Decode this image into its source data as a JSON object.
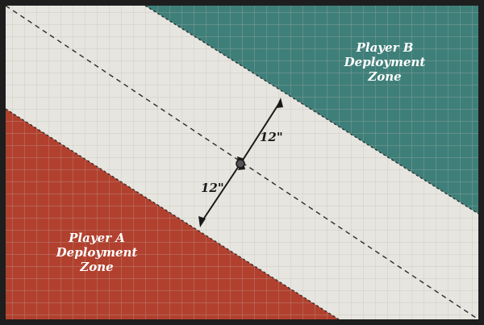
{
  "zones": {
    "player_a": {
      "label_lines": [
        "Player A",
        "Deployment",
        "Zone"
      ],
      "color": "#b2402e"
    },
    "player_b": {
      "label_lines": [
        "Player B",
        "Deployment",
        "Zone"
      ],
      "color": "#3f7f7a"
    },
    "neutral_color": "#e6e5df"
  },
  "measurements": {
    "upper": "12\"",
    "lower": "12\""
  },
  "border_color": "#1e1e1e",
  "grid_color": "#b8b6ad"
}
